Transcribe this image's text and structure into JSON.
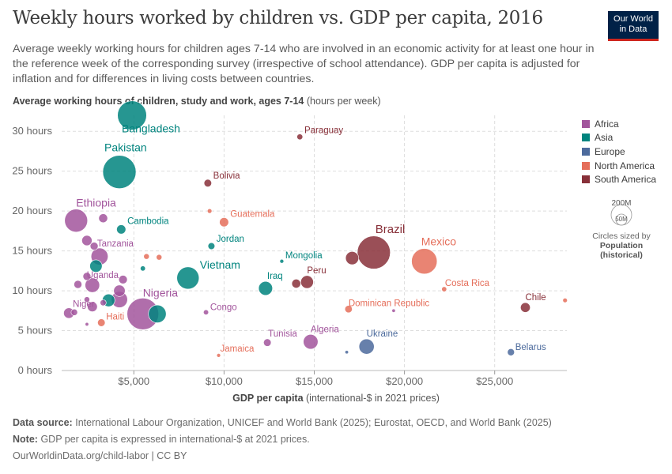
{
  "header": {
    "title": "Weekly hours worked by children vs. GDP per capita, 2016",
    "subtitle": "Average weekly working hours for children ages 7-14 who are involved in an economic activity for at least one hour in the reference week of the corresponding survey (irrespective of school attendance). GDP per capita is adjusted for inflation and for differences in living costs between countries.",
    "logo_line1": "Our World",
    "logo_line2": "in Data"
  },
  "axes": {
    "y_title_bold": "Average working hours of children, study and work, ages 7-14",
    "y_title_unit": "(hours per week)",
    "x_title_bold": "GDP per capita",
    "x_title_unit": "(international-$ in 2021 prices)",
    "y_ticks": [
      "0 hours",
      "5 hours",
      "10 hours",
      "15 hours",
      "20 hours",
      "25 hours",
      "30 hours"
    ],
    "x_ticks": [
      "$5,000",
      "$10,000",
      "$15,000",
      "$20,000",
      "$25,000"
    ]
  },
  "legend": {
    "items": [
      {
        "label": "Africa",
        "color": "#a2559c"
      },
      {
        "label": "Asia",
        "color": "#00847e"
      },
      {
        "label": "Europe",
        "color": "#4c6a9c"
      },
      {
        "label": "North America",
        "color": "#e56e5a"
      },
      {
        "label": "South America",
        "color": "#883039"
      }
    ],
    "size_big": "200M",
    "size_small": "50M",
    "size_caption": "Circles sized by",
    "size_var": "Population",
    "size_var2": "(historical)"
  },
  "footer": {
    "source_label": "Data source:",
    "source": "International Labour Organization, UNICEF and World Bank (2025); Eurostat, OECD, and World Bank (2025)",
    "note_label": "Note:",
    "note": "GDP per capita is expressed in international-$ at 2021 prices.",
    "url": "OurWorldinData.org/child-labor | CC BY"
  },
  "chart_data": {
    "type": "scatter",
    "title": "Weekly hours worked by children vs. GDP per capita, 2016",
    "xlabel": "GDP per capita (international-$ in 2021 prices)",
    "ylabel": "Average working hours of children, study and work, ages 7-14 (hours per week)",
    "xlim": [
      1000,
      29000
    ],
    "ylim": [
      0,
      32
    ],
    "grid": true,
    "legend_position": "right",
    "points": [
      {
        "label": "Bangladesh",
        "region": "Asia",
        "x": 4900,
        "y": 32.0,
        "pop": 160
      },
      {
        "label": "Pakistan",
        "region": "Asia",
        "x": 4200,
        "y": 24.9,
        "pop": 210
      },
      {
        "label": "Ethiopia",
        "region": "Africa",
        "x": 1800,
        "y": 18.8,
        "pop": 100
      },
      {
        "label": "Cambodia",
        "region": "Asia",
        "x": 4300,
        "y": 17.7,
        "pop": 16
      },
      {
        "label": "Tanzania",
        "region": "Africa",
        "x": 3100,
        "y": 14.3,
        "pop": 55
      },
      {
        "label": "Uganda",
        "region": "Africa",
        "x": 2700,
        "y": 10.7,
        "pop": 40
      },
      {
        "label": "Niger",
        "region": "Africa",
        "x": 1400,
        "y": 7.2,
        "pop": 21
      },
      {
        "label": "Haiti",
        "region": "North America",
        "x": 3200,
        "y": 6.0,
        "pop": 11
      },
      {
        "label": "Nigeria",
        "region": "Africa",
        "x": 5500,
        "y": 7.1,
        "pop": 190
      },
      {
        "label": "Vietnam",
        "region": "Asia",
        "x": 8000,
        "y": 11.6,
        "pop": 94
      },
      {
        "label": "Jordan",
        "region": "Asia",
        "x": 9300,
        "y": 15.6,
        "pop": 9
      },
      {
        "label": "Bolivia",
        "region": "South America",
        "x": 9100,
        "y": 23.5,
        "pop": 11
      },
      {
        "label": "Paraguay",
        "region": "South America",
        "x": 14200,
        "y": 29.3,
        "pop": 6.5
      },
      {
        "label": "Guatemala",
        "region": "North America",
        "x": 10000,
        "y": 18.6,
        "pop": 16
      },
      {
        "label": "Mongolia",
        "region": "Asia",
        "x": 13200,
        "y": 13.7,
        "pop": 3
      },
      {
        "label": "Iraq",
        "region": "Asia",
        "x": 12300,
        "y": 10.3,
        "pop": 37
      },
      {
        "label": "Peru",
        "region": "South America",
        "x": 14600,
        "y": 11.1,
        "pop": 31
      },
      {
        "label": "Congo",
        "region": "Africa",
        "x": 9000,
        "y": 7.3,
        "pop": 5
      },
      {
        "label": "Tunisia",
        "region": "Africa",
        "x": 12400,
        "y": 3.5,
        "pop": 11
      },
      {
        "label": "Algeria",
        "region": "Africa",
        "x": 14800,
        "y": 3.6,
        "pop": 41
      },
      {
        "label": "Jamaica",
        "region": "North America",
        "x": 9700,
        "y": 1.9,
        "pop": 2.8
      },
      {
        "label": "Brazil",
        "region": "South America",
        "x": 18300,
        "y": 14.8,
        "pop": 207
      },
      {
        "label": "Mexico",
        "region": "North America",
        "x": 21100,
        "y": 13.7,
        "pop": 124
      },
      {
        "label": "Costa Rica",
        "region": "North America",
        "x": 22200,
        "y": 10.2,
        "pop": 4.9
      },
      {
        "label": "Dominican Republic",
        "region": "North America",
        "x": 16900,
        "y": 7.7,
        "pop": 10.5
      },
      {
        "label": "Ukraine",
        "region": "Europe",
        "x": 17900,
        "y": 3.0,
        "pop": 44
      },
      {
        "label": "Chile",
        "region": "South America",
        "x": 26700,
        "y": 7.9,
        "pop": 18
      },
      {
        "label": "Belarus",
        "region": "Europe",
        "x": 25900,
        "y": 2.3,
        "pop": 9.5
      },
      {
        "label": "",
        "region": "North America",
        "x": 28900,
        "y": 8.8,
        "pop": 4
      },
      {
        "label": "",
        "region": "Africa",
        "x": 3300,
        "y": 19.1,
        "pop": 15
      },
      {
        "label": "",
        "region": "Africa",
        "x": 2400,
        "y": 16.3,
        "pop": 20
      },
      {
        "label": "",
        "region": "Africa",
        "x": 2800,
        "y": 15.6,
        "pop": 12
      },
      {
        "label": "",
        "region": "Asia",
        "x": 2900,
        "y": 13.1,
        "pop": 29
      },
      {
        "label": "",
        "region": "Africa",
        "x": 2400,
        "y": 11.8,
        "pop": 12
      },
      {
        "label": "",
        "region": "Africa",
        "x": 1900,
        "y": 10.8,
        "pop": 12
      },
      {
        "label": "",
        "region": "Africa",
        "x": 4400,
        "y": 11.4,
        "pop": 14
      },
      {
        "label": "",
        "region": "Africa",
        "x": 4200,
        "y": 10.0,
        "pop": 25
      },
      {
        "label": "",
        "region": "Africa",
        "x": 4200,
        "y": 8.9,
        "pop": 50
      },
      {
        "label": "",
        "region": "Asia",
        "x": 3600,
        "y": 8.8,
        "pop": 30
      },
      {
        "label": "",
        "region": "Africa",
        "x": 3300,
        "y": 8.5,
        "pop": 7
      },
      {
        "label": "",
        "region": "Africa",
        "x": 2400,
        "y": 8.9,
        "pop": 6
      },
      {
        "label": "",
        "region": "Africa",
        "x": 2700,
        "y": 8.0,
        "pop": 19
      },
      {
        "label": "",
        "region": "Africa",
        "x": 1700,
        "y": 7.3,
        "pop": 8
      },
      {
        "label": "",
        "region": "Africa",
        "x": 2400,
        "y": 5.8,
        "pop": 2
      },
      {
        "label": "",
        "region": "Asia",
        "x": 6300,
        "y": 7.1,
        "pop": 60
      },
      {
        "label": "",
        "region": "Asia",
        "x": 5500,
        "y": 12.8,
        "pop": 5
      },
      {
        "label": "",
        "region": "North America",
        "x": 5700,
        "y": 14.3,
        "pop": 6
      },
      {
        "label": "",
        "region": "North America",
        "x": 6400,
        "y": 14.2,
        "pop": 6
      },
      {
        "label": "",
        "region": "North America",
        "x": 9200,
        "y": 20.0,
        "pop": 4
      },
      {
        "label": "",
        "region": "South America",
        "x": 17100,
        "y": 14.1,
        "pop": 33
      },
      {
        "label": "",
        "region": "South America",
        "x": 14000,
        "y": 10.9,
        "pop": 15
      },
      {
        "label": "",
        "region": "Africa",
        "x": 19400,
        "y": 7.5,
        "pop": 1.5
      },
      {
        "label": "",
        "region": "Europe",
        "x": 16800,
        "y": 2.3,
        "pop": 2
      }
    ]
  }
}
